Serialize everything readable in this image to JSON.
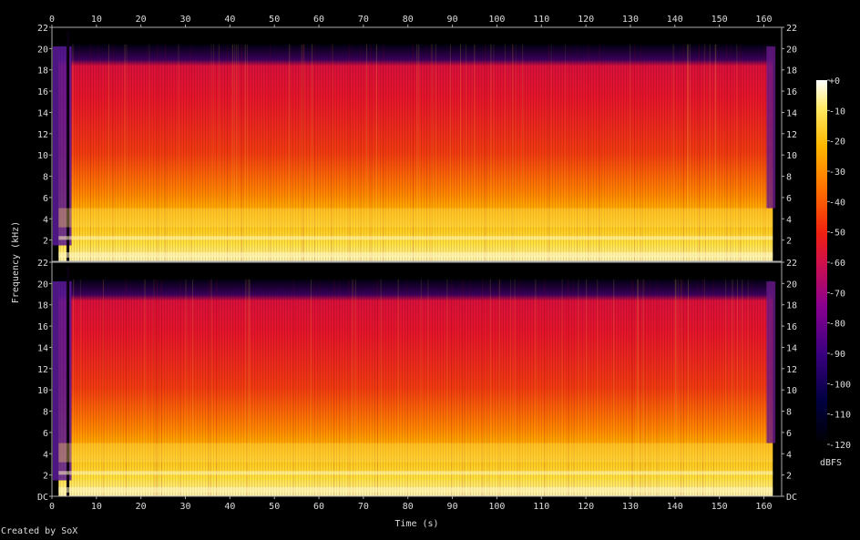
{
  "chart_data": {
    "type": "heatmap",
    "title": "",
    "xlabel": "Time (s)",
    "ylabel": "Frequency (kHz)",
    "xlim": [
      0,
      164
    ],
    "ylim": [
      0,
      22
    ],
    "x_ticks": [
      0,
      10,
      20,
      30,
      40,
      50,
      60,
      70,
      80,
      90,
      100,
      110,
      120,
      130,
      140,
      150,
      160
    ],
    "y_ticks": [
      "DC",
      "2",
      "4",
      "6",
      "8",
      "10",
      "12",
      "14",
      "16",
      "18",
      "20",
      "22"
    ],
    "channels": [
      {
        "name": "",
        "content_bandwidth_khz": 20,
        "signal_start_s": 1.5,
        "signal_end_s": 162
      },
      {
        "name": "",
        "content_bandwidth_khz": 20,
        "signal_start_s": 1.5,
        "signal_end_s": 162
      }
    ],
    "colorbar": {
      "label": "dBFS",
      "range": [
        -120,
        0
      ],
      "ticks": [
        "+0",
        "-10",
        "-20",
        "-30",
        "-40",
        "-50",
        "-60",
        "-70",
        "-80",
        "-90",
        "-100",
        "-110",
        "-120"
      ]
    }
  },
  "footer": {
    "credit": "Created by SoX"
  }
}
